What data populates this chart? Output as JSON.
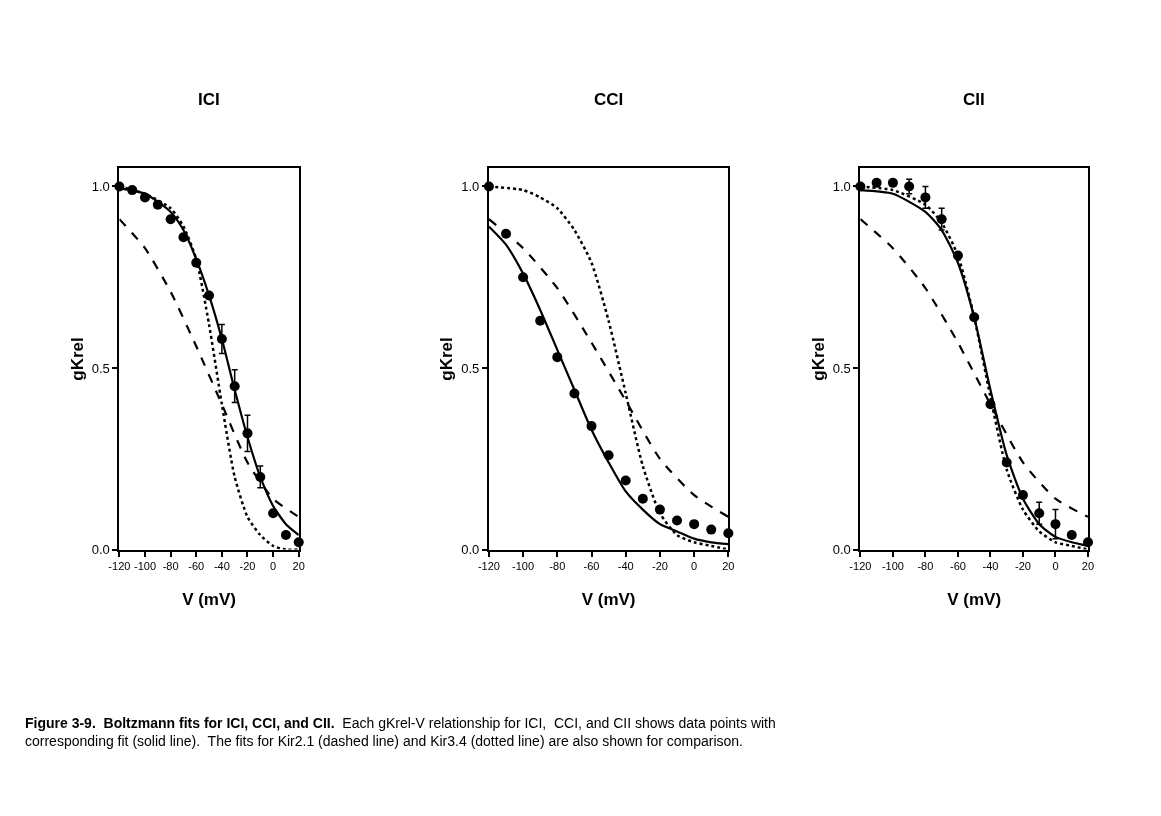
{
  "chart_data": [
    {
      "type": "line",
      "title": "ICI",
      "xlabel": "V (mV)",
      "ylabel": "gKrel",
      "xlim": [
        -120,
        20
      ],
      "ylim": [
        0,
        1.05
      ],
      "xticks": [
        -120,
        -100,
        -80,
        -60,
        -40,
        -20,
        0,
        20
      ],
      "yticks": [
        {
          "value": 0,
          "label": "0.0"
        },
        {
          "value": 0.5,
          "label": "0.5"
        },
        {
          "value": 1,
          "label": "1.0"
        }
      ],
      "legend": false,
      "annotations": [
        "Figure 3-9.  Boltzmann fits for ICI, CCI, and CII.",
        "Each gKrel-V relationship for ICI,  CCI, and CII shows data points with corresponding fit (solid line).  The fits for Kir2.1 (dashed line) and Kir3.4 (dotted line) are also shown for comparison."
      ],
      "series": [
        {
          "type": "line",
          "color": "#000000",
          "line_style": "dashed",
          "marker": "none",
          "x": [
            -120,
            -100,
            -80,
            -60,
            -40,
            -20,
            0,
            20
          ],
          "values": [
            0.91,
            0.83,
            0.71,
            0.56,
            0.4,
            0.24,
            0.14,
            0.09
          ]
        },
        {
          "type": "line",
          "color": "#000000",
          "line_style": "dotted",
          "marker": "none",
          "x": [
            -120,
            -100,
            -80,
            -70,
            -60,
            -50,
            -40,
            -30,
            -20,
            -10,
            0,
            10,
            20
          ],
          "values": [
            1.0,
            0.98,
            0.94,
            0.89,
            0.8,
            0.62,
            0.4,
            0.2,
            0.09,
            0.04,
            0.01,
            0.0,
            0.0
          ]
        },
        {
          "type": "line",
          "color": "#000000",
          "line_style": "solid",
          "marker": "none",
          "x": [
            -120,
            -100,
            -80,
            -70,
            -60,
            -50,
            -40,
            -30,
            -20,
            -10,
            0,
            10,
            20
          ],
          "values": [
            0.995,
            0.98,
            0.93,
            0.88,
            0.8,
            0.7,
            0.58,
            0.44,
            0.31,
            0.2,
            0.12,
            0.07,
            0.04
          ]
        },
        {
          "type": "scatter",
          "color": "#000000",
          "marker": "circle",
          "x": [
            -120,
            -110,
            -100,
            -90,
            -80,
            -70,
            -60,
            -50,
            -40,
            -30,
            -20,
            -10,
            0,
            10,
            20
          ],
          "values": [
            1.0,
            0.99,
            0.97,
            0.95,
            0.91,
            0.86,
            0.79,
            0.7,
            0.58,
            0.45,
            0.32,
            0.2,
            0.1,
            0.04,
            0.02
          ],
          "errors": [
            null,
            null,
            null,
            null,
            null,
            null,
            null,
            null,
            0.04,
            0.045,
            0.05,
            0.03,
            null,
            null,
            null
          ]
        }
      ]
    },
    {
      "type": "line",
      "title": "CCI",
      "xlabel": "V (mV)",
      "ylabel": "gKrel",
      "xlim": [
        -120,
        20
      ],
      "ylim": [
        0,
        1.05
      ],
      "xticks": [
        -120,
        -100,
        -80,
        -60,
        -40,
        -20,
        0,
        20
      ],
      "yticks": [
        {
          "value": 0,
          "label": "0.0"
        },
        {
          "value": 0.5,
          "label": "0.5"
        },
        {
          "value": 1,
          "label": "1.0"
        }
      ],
      "legend": false,
      "series": [
        {
          "type": "line",
          "color": "#000000",
          "line_style": "dashed",
          "marker": "none",
          "x": [
            -120,
            -100,
            -80,
            -60,
            -40,
            -20,
            0,
            20
          ],
          "values": [
            0.91,
            0.83,
            0.72,
            0.57,
            0.41,
            0.25,
            0.15,
            0.09
          ]
        },
        {
          "type": "line",
          "color": "#000000",
          "line_style": "dotted",
          "marker": "none",
          "x": [
            -120,
            -100,
            -90,
            -80,
            -70,
            -60,
            -50,
            -40,
            -30,
            -20,
            -10,
            0,
            10,
            20
          ],
          "values": [
            1.0,
            0.99,
            0.97,
            0.94,
            0.88,
            0.79,
            0.63,
            0.43,
            0.23,
            0.1,
            0.04,
            0.02,
            0.01,
            0.0
          ]
        },
        {
          "type": "line",
          "color": "#000000",
          "line_style": "solid",
          "marker": "none",
          "x": [
            -120,
            -110,
            -100,
            -90,
            -80,
            -70,
            -60,
            -50,
            -40,
            -30,
            -20,
            -10,
            0,
            10,
            20
          ],
          "values": [
            0.89,
            0.84,
            0.76,
            0.66,
            0.55,
            0.44,
            0.33,
            0.24,
            0.16,
            0.11,
            0.07,
            0.05,
            0.03,
            0.02,
            0.015
          ]
        },
        {
          "type": "scatter",
          "color": "#000000",
          "marker": "circle",
          "x": [
            -120,
            -110,
            -100,
            -90,
            -80,
            -70,
            -60,
            -50,
            -40,
            -30,
            -20,
            -10,
            0,
            10,
            20
          ],
          "values": [
            1.0,
            0.87,
            0.75,
            0.63,
            0.53,
            0.43,
            0.34,
            0.26,
            0.19,
            0.14,
            0.11,
            0.08,
            0.07,
            0.055,
            0.045
          ]
        }
      ]
    },
    {
      "type": "line",
      "title": "CII",
      "xlabel": "V (mV)",
      "ylabel": "gKrel",
      "xlim": [
        -120,
        20
      ],
      "ylim": [
        0,
        1.05
      ],
      "xticks": [
        -120,
        -100,
        -80,
        -60,
        -40,
        -20,
        0,
        20
      ],
      "yticks": [
        {
          "value": 0,
          "label": "0.0"
        },
        {
          "value": 0.5,
          "label": "0.5"
        },
        {
          "value": 1,
          "label": "1.0"
        }
      ],
      "legend": false,
      "series": [
        {
          "type": "line",
          "color": "#000000",
          "line_style": "dashed",
          "marker": "none",
          "x": [
            -120,
            -100,
            -80,
            -60,
            -40,
            -20,
            0,
            20
          ],
          "values": [
            0.91,
            0.83,
            0.72,
            0.57,
            0.4,
            0.24,
            0.14,
            0.09
          ]
        },
        {
          "type": "line",
          "color": "#000000",
          "line_style": "dotted",
          "marker": "none",
          "x": [
            -120,
            -100,
            -80,
            -70,
            -60,
            -50,
            -40,
            -30,
            -20,
            -10,
            0,
            10,
            20
          ],
          "values": [
            1.0,
            0.99,
            0.95,
            0.9,
            0.81,
            0.64,
            0.42,
            0.22,
            0.11,
            0.05,
            0.02,
            0.01,
            0.0
          ]
        },
        {
          "type": "line",
          "color": "#000000",
          "line_style": "solid",
          "marker": "none",
          "x": [
            -120,
            -100,
            -80,
            -70,
            -60,
            -50,
            -40,
            -30,
            -20,
            -10,
            0,
            10,
            20
          ],
          "values": [
            0.99,
            0.98,
            0.93,
            0.88,
            0.79,
            0.64,
            0.44,
            0.26,
            0.14,
            0.07,
            0.035,
            0.02,
            0.01
          ]
        },
        {
          "type": "scatter",
          "color": "#000000",
          "marker": "circle",
          "x": [
            -120,
            -110,
            -100,
            -90,
            -80,
            -70,
            -60,
            -50,
            -40,
            -30,
            -20,
            -10,
            0,
            10,
            20
          ],
          "values": [
            1.0,
            1.01,
            1.01,
            1.0,
            0.97,
            0.91,
            0.81,
            0.64,
            0.4,
            0.24,
            0.15,
            0.1,
            0.07,
            0.04,
            0.02
          ],
          "errors": [
            null,
            null,
            null,
            0.02,
            0.03,
            0.03,
            null,
            null,
            null,
            null,
            null,
            0.03,
            0.04,
            null,
            null
          ]
        }
      ]
    }
  ]
}
